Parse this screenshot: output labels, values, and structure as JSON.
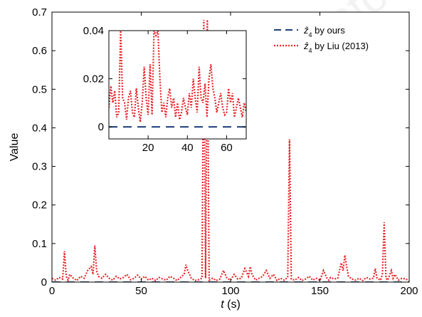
{
  "chart_data": [
    {
      "type": "line",
      "xlabel": "t (s)",
      "ylabel": "Value",
      "xlim": [
        0,
        200
      ],
      "ylim": [
        0,
        0.7
      ],
      "xticks": [
        0,
        50,
        100,
        150,
        200
      ],
      "yticks": [
        0,
        0.1,
        0.2,
        0.3,
        0.4,
        0.5,
        0.6,
        0.7
      ],
      "xtick_labels": [
        "0",
        "50",
        "100",
        "150",
        "200"
      ],
      "ytick_labels": [
        "0",
        "0.1",
        "0.2",
        "0.3",
        "0.4",
        "0.5",
        "0.6",
        "0.7"
      ],
      "grid": false,
      "legend_position": "top-right",
      "series": [
        {
          "name": "ẑ4 by ours",
          "style": "dashed",
          "color": "#1f3f7a",
          "x": [
            0,
            200
          ],
          "y": [
            0,
            0
          ]
        },
        {
          "name": "ẑ4 by Liu (2013)",
          "style": "dotted",
          "color": "#e8262b",
          "x": [
            0,
            2,
            4,
            6,
            7,
            8,
            9,
            10,
            12,
            14,
            16,
            18,
            20,
            22,
            23,
            24,
            25,
            26,
            28,
            30,
            32,
            34,
            36,
            38,
            40,
            42,
            44,
            46,
            48,
            50,
            52,
            54,
            56,
            58,
            60,
            62,
            64,
            66,
            68,
            70,
            72,
            74,
            75,
            76,
            78,
            80,
            82,
            84,
            85,
            86,
            87,
            88,
            90,
            92,
            94,
            96,
            98,
            100,
            102,
            104,
            106,
            108,
            110,
            111,
            112,
            114,
            116,
            118,
            120,
            122,
            124,
            126,
            128,
            130,
            132,
            133,
            134,
            136,
            138,
            140,
            142,
            144,
            146,
            148,
            150,
            152,
            154,
            155,
            156,
            158,
            160,
            162,
            163,
            164,
            165,
            166,
            168,
            170,
            172,
            174,
            176,
            178,
            180,
            181,
            182,
            184,
            185,
            186,
            187,
            188,
            190,
            191,
            192,
            194,
            196,
            198,
            200
          ],
          "y": [
            0.01,
            0.005,
            0.012,
            0.008,
            0.08,
            0.015,
            0.005,
            0.02,
            0.01,
            0.004,
            0.015,
            0.01,
            0.03,
            0.04,
            0.02,
            0.095,
            0.03,
            0.015,
            0.01,
            0.02,
            0.01,
            0.005,
            0.015,
            0.008,
            0.012,
            0.02,
            0.006,
            0.01,
            0.018,
            0.008,
            0.015,
            0.005,
            0.01,
            0.004,
            0.012,
            0.008,
            0.005,
            0.015,
            0.01,
            0.004,
            0.012,
            0.02,
            0.045,
            0.03,
            0.01,
            0.004,
            0.006,
            0.01,
            0.68,
            0.01,
            0.68,
            0.005,
            0.01,
            0.004,
            0.008,
            0.03,
            0.01,
            0.005,
            0.02,
            0.008,
            0.01,
            0.035,
            0.015,
            0.04,
            0.02,
            0.005,
            0.01,
            0.015,
            0.03,
            0.01,
            0.02,
            0.004,
            0.01,
            0.005,
            0.012,
            0.37,
            0.008,
            0.005,
            0.012,
            0.004,
            0.008,
            0.015,
            0.005,
            0.01,
            0.004,
            0.03,
            0.01,
            0.005,
            0.012,
            0.008,
            0.01,
            0.05,
            0.03,
            0.07,
            0.04,
            0.015,
            0.008,
            0.005,
            0.01,
            0.004,
            0.012,
            0.008,
            0.01,
            0.035,
            0.01,
            0.005,
            0.02,
            0.155,
            0.01,
            0.005,
            0.03,
            0.01,
            0.02,
            0.005,
            0.01,
            0.008,
            0.004
          ]
        }
      ]
    },
    {
      "type": "line",
      "inset": true,
      "xlim": [
        0,
        70
      ],
      "ylim": [
        -0.005,
        0.04
      ],
      "xticks": [
        20,
        40,
        60
      ],
      "yticks": [
        0,
        0.02,
        0.04
      ],
      "xtick_labels": [
        "20",
        "40",
        "60"
      ],
      "ytick_labels": [
        "0",
        "0.02",
        "0.04"
      ],
      "grid": false,
      "series": [
        {
          "name": "ẑ4 by ours",
          "style": "dashed",
          "color": "#1f3f7a",
          "x": [
            0,
            70
          ],
          "y": [
            0,
            0
          ]
        },
        {
          "name": "ẑ4 by Liu (2013)",
          "style": "dotted",
          "color": "#e8262b",
          "x": [
            0,
            1,
            2,
            3,
            4,
            5,
            6,
            7,
            8,
            9,
            10,
            11,
            12,
            13,
            14,
            15,
            16,
            17,
            18,
            19,
            20,
            21,
            22,
            23,
            24,
            25,
            26,
            27,
            28,
            29,
            30,
            31,
            32,
            33,
            34,
            35,
            36,
            37,
            38,
            39,
            40,
            41,
            42,
            43,
            44,
            45,
            46,
            47,
            48,
            49,
            50,
            51,
            52,
            53,
            54,
            55,
            56,
            57,
            58,
            59,
            60,
            61,
            62,
            63,
            64,
            65,
            66,
            67,
            68,
            69,
            70
          ],
          "y": [
            0.008,
            0.017,
            0.01,
            0.015,
            0.004,
            0.006,
            0.04,
            0.012,
            0.01,
            0.003,
            0.012,
            0.015,
            0.006,
            0.004,
            0.016,
            0.008,
            0.002,
            0.01,
            0.025,
            0.012,
            0.005,
            0.026,
            0.005,
            0.04,
            0.038,
            0.04,
            0.02,
            0.006,
            0.01,
            0.004,
            0.012,
            0.016,
            0.008,
            0.012,
            0.004,
            0.01,
            0.003,
            0.006,
            0.012,
            0.008,
            0.005,
            0.014,
            0.008,
            0.02,
            0.012,
            0.006,
            0.025,
            0.012,
            0.01,
            0.018,
            0.004,
            0.02,
            0.026,
            0.016,
            0.012,
            0.006,
            0.01,
            0.014,
            0.008,
            0.005,
            0.006,
            0.016,
            0.01,
            0.014,
            0.004,
            0.008,
            0.012,
            0.008,
            0.004,
            0.01,
            0.006
          ]
        }
      ]
    }
  ],
  "legend": {
    "items": [
      {
        "label": "ẑ4 by ours",
        "style": "dashed",
        "color": "#1f3f7a"
      },
      {
        "label": "ẑ4 by Liu (2013)",
        "style": "dotted",
        "color": "#e8262b"
      }
    ]
  }
}
